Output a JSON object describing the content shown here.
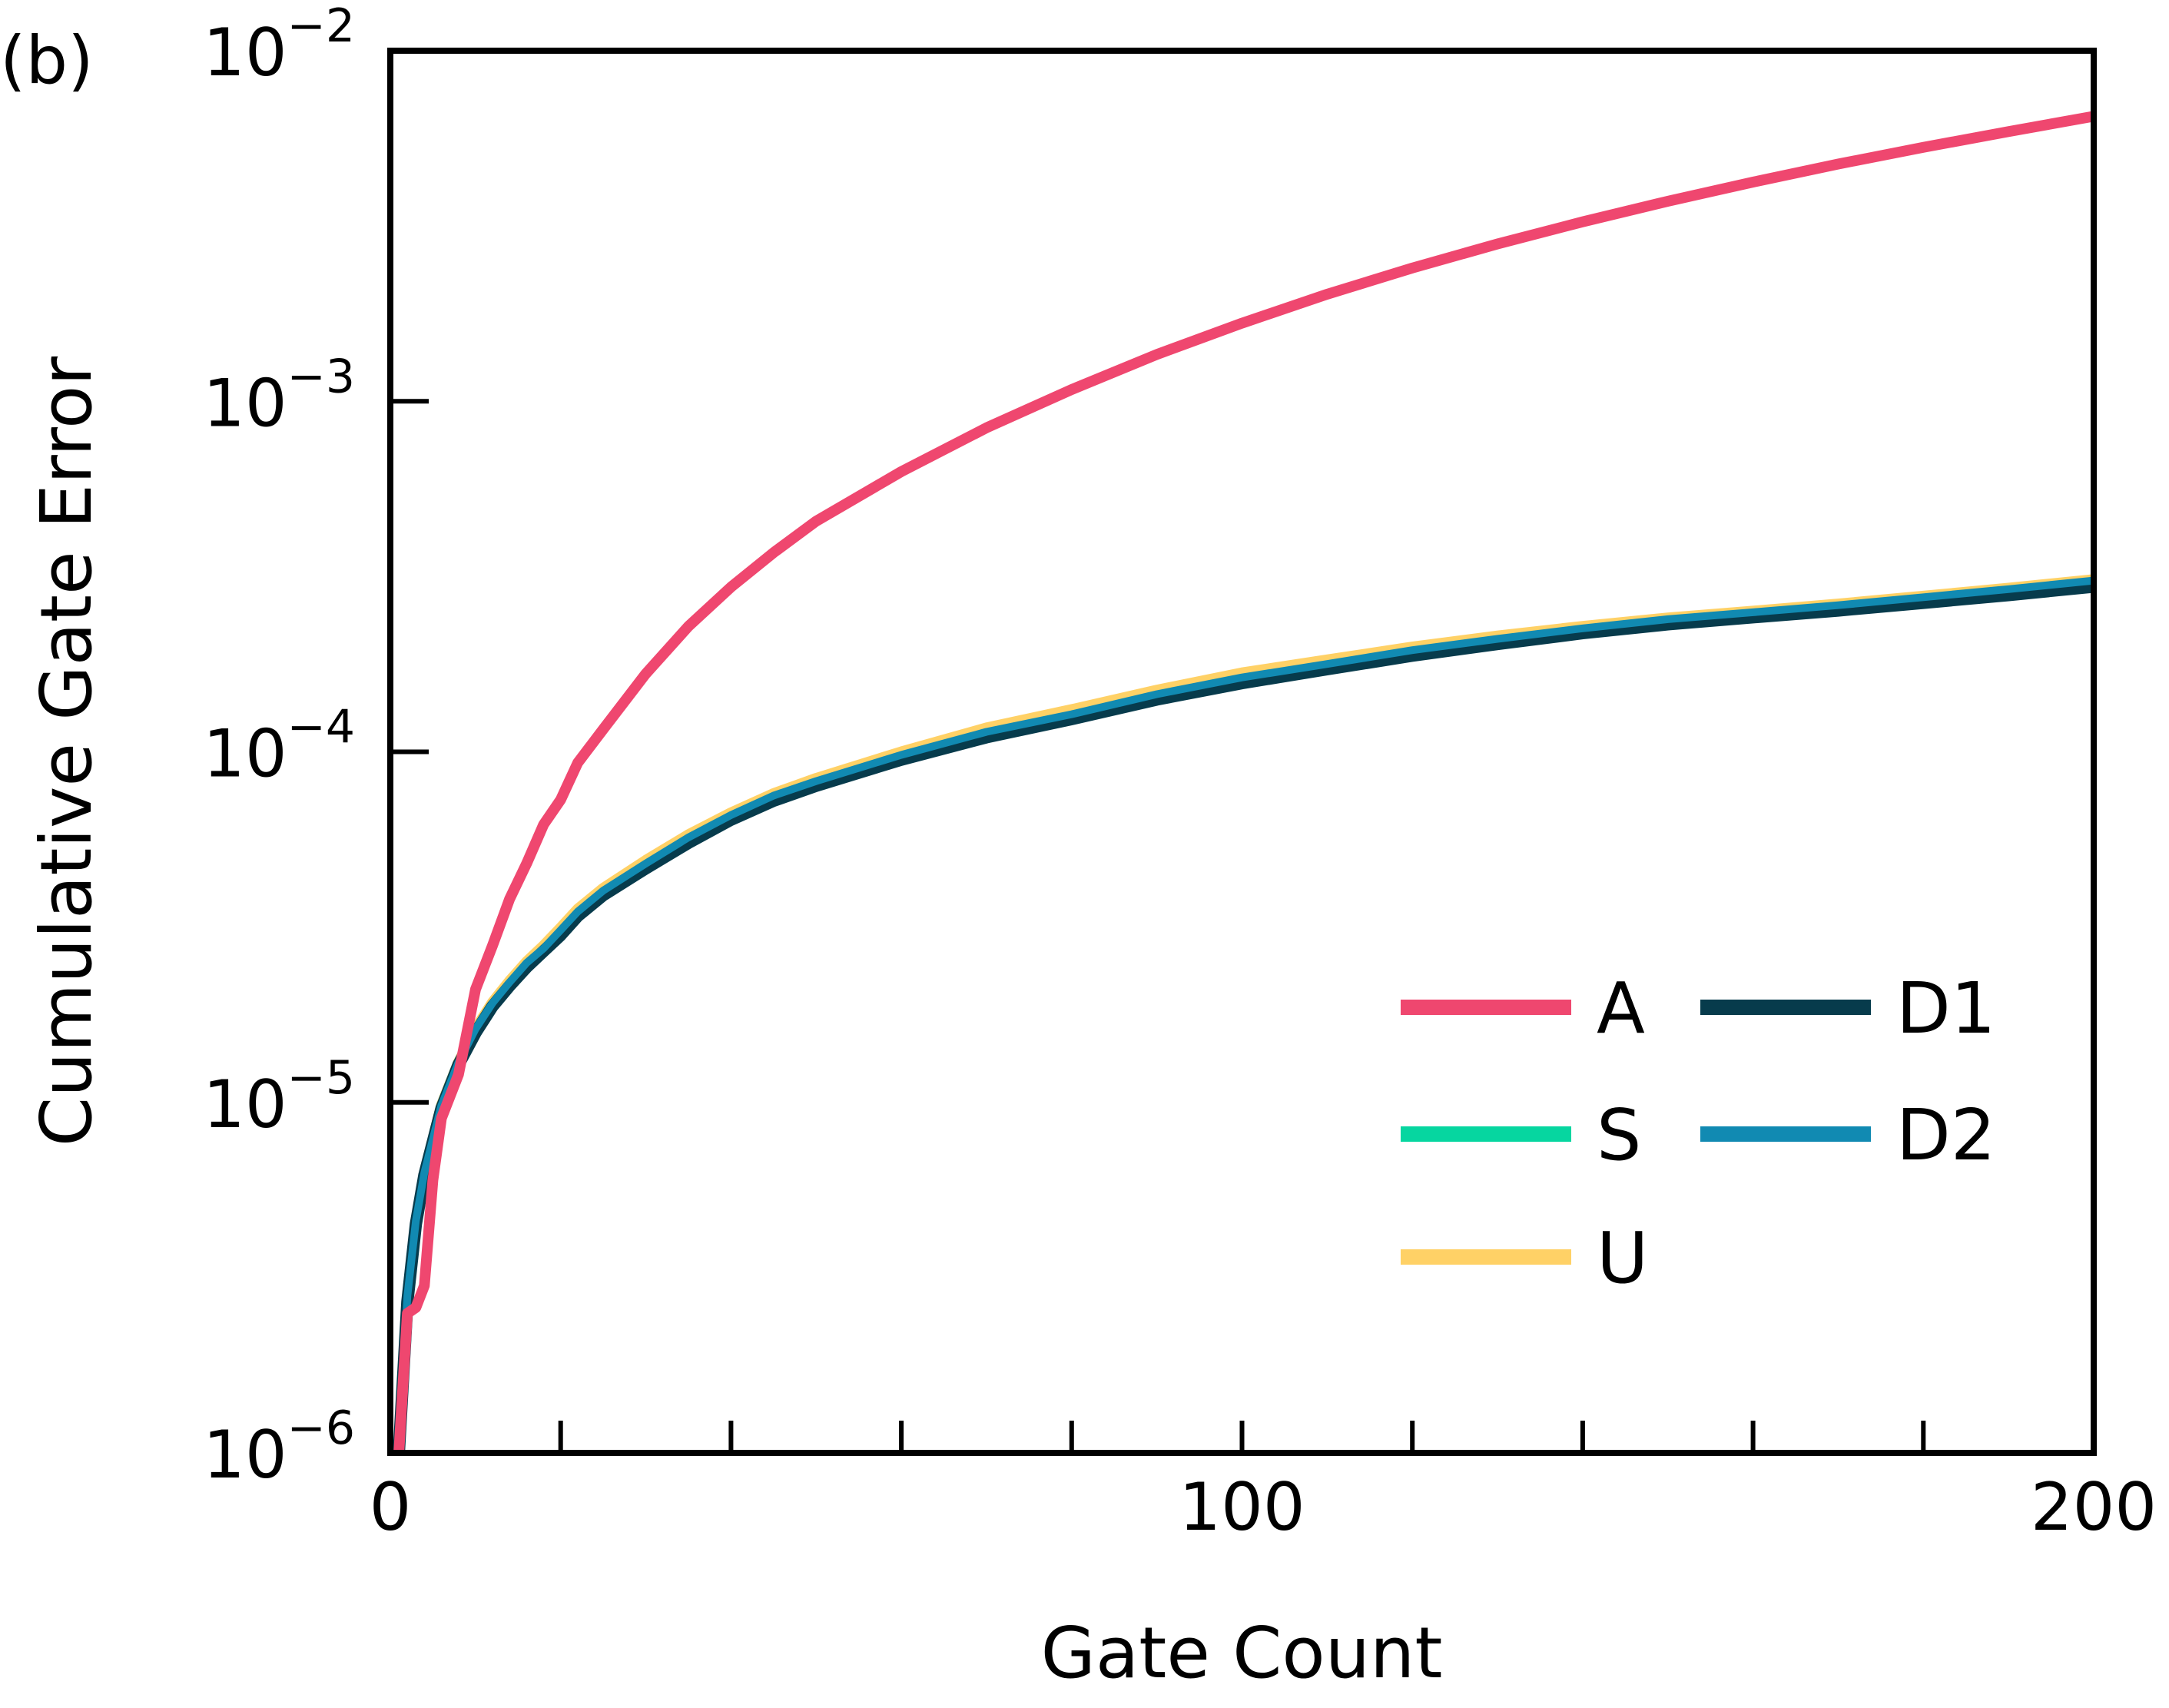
{
  "panel_label": "(b)",
  "colors": {
    "A": "#ef476f",
    "S": "#06d6a0",
    "U": "#ffd166",
    "D1": "#073b4c",
    "D2": "#118ab2",
    "axes": "#000000"
  },
  "chart_data": {
    "type": "line",
    "title": "",
    "xlabel": "Gate Count",
    "ylabel": "Cumulative Gate Error",
    "xlim": [
      0,
      200
    ],
    "ylim": [
      1e-06,
      0.01
    ],
    "yscale": "log",
    "grid": false,
    "legend_position": "lower-right",
    "legend_columns": 2,
    "x_ticks": [
      0,
      100,
      200
    ],
    "x_minor_ticks": [
      20,
      40,
      60,
      80,
      120,
      140,
      160,
      180
    ],
    "y_ticks": [
      {
        "value": 1e-06,
        "base": "10",
        "exponent": "−6"
      },
      {
        "value": 1e-05,
        "base": "10",
        "exponent": "−5"
      },
      {
        "value": 0.0001,
        "base": "10",
        "exponent": "−4"
      },
      {
        "value": 0.001,
        "base": "10",
        "exponent": "−3"
      },
      {
        "value": 0.01,
        "base": "10",
        "exponent": "−2"
      }
    ],
    "series": [
      {
        "name": "A",
        "color_key": "A",
        "x": [
          1,
          2,
          3,
          4,
          5,
          6,
          8,
          10,
          12,
          14,
          16,
          18,
          20,
          22,
          25,
          30,
          35,
          40,
          45,
          50,
          60,
          70,
          80,
          90,
          100,
          110,
          120,
          130,
          140,
          150,
          160,
          170,
          180,
          190,
          200
        ],
        "y": [
          1e-06,
          2.5e-06,
          2.6e-06,
          3e-06,
          6e-06,
          9e-06,
          1.2e-05,
          2.1e-05,
          2.8e-05,
          3.8e-05,
          4.8e-05,
          6.2e-05,
          7.3e-05,
          9.3e-05,
          0.000116,
          0.000167,
          0.000228,
          0.000295,
          0.00037,
          0.000455,
          0.00063,
          0.00084,
          0.00108,
          0.00136,
          0.00167,
          0.00202,
          0.0024,
          0.00281,
          0.00325,
          0.00372,
          0.00422,
          0.00475,
          0.0053,
          0.00588,
          0.0065
        ]
      },
      {
        "name": "S",
        "color_key": "S",
        "x": [
          1,
          2,
          3,
          4,
          6,
          8,
          10,
          12,
          14,
          16,
          18,
          20,
          22,
          25,
          30,
          35,
          40,
          45,
          50,
          60,
          70,
          80,
          90,
          100,
          110,
          120,
          130,
          140,
          150,
          160,
          170,
          180,
          190,
          200
        ],
        "y": [
          1e-06,
          2.8e-06,
          4.6e-06,
          6.3e-06,
          9.8e-06,
          1.3e-05,
          1.62e-05,
          1.92e-05,
          2.2e-05,
          2.5e-05,
          2.75e-05,
          3.1e-05,
          3.5e-05,
          4.02e-05,
          4.8e-05,
          5.7e-05,
          6.6e-05,
          7.5e-05,
          8.25e-05,
          9.8e-05,
          0.000114,
          0.000128,
          0.000146,
          0.000163,
          0.000178,
          0.000195,
          0.00021,
          0.000225,
          0.000239,
          0.00025,
          0.000262,
          0.000276,
          0.000291,
          0.000308
        ]
      },
      {
        "name": "U",
        "color_key": "U",
        "x": [
          1,
          2,
          3,
          4,
          6,
          8,
          10,
          12,
          14,
          16,
          18,
          20,
          22,
          25,
          30,
          35,
          40,
          45,
          50,
          60,
          70,
          80,
          90,
          100,
          110,
          120,
          130,
          140,
          150,
          160,
          170,
          180,
          190,
          200
        ],
        "y": [
          1e-06,
          2.8e-06,
          4.6e-06,
          6.3e-06,
          9.8e-06,
          1.3e-05,
          1.62e-05,
          1.93e-05,
          2.22e-05,
          2.52e-05,
          2.8e-05,
          3.15e-05,
          3.56e-05,
          4.08e-05,
          4.9e-05,
          5.8e-05,
          6.7e-05,
          7.6e-05,
          8.4e-05,
          0.0001,
          0.000117,
          0.000132,
          0.00015,
          0.000168,
          0.000183,
          0.000199,
          0.000214,
          0.000228,
          0.000241,
          0.000252,
          0.000264,
          0.000278,
          0.000293,
          0.00031
        ]
      },
      {
        "name": "D1",
        "color_key": "D1",
        "x": [
          1,
          2,
          3,
          4,
          6,
          8,
          10,
          12,
          14,
          16,
          18,
          20,
          22,
          25,
          30,
          35,
          40,
          45,
          50,
          60,
          70,
          80,
          90,
          100,
          110,
          120,
          130,
          140,
          150,
          160,
          170,
          180,
          190,
          200
        ],
        "y": [
          1e-06,
          2.7e-06,
          4.5e-06,
          6.2e-06,
          9.6e-06,
          1.28e-05,
          1.58e-05,
          1.88e-05,
          2.15e-05,
          2.43e-05,
          2.7e-05,
          3e-05,
          3.4e-05,
          3.9e-05,
          4.65e-05,
          5.5e-05,
          6.4e-05,
          7.25e-05,
          8e-05,
          9.5e-05,
          0.00011,
          0.000124,
          0.000141,
          0.000157,
          0.000172,
          0.000188,
          0.000203,
          0.000218,
          0.000231,
          0.000242,
          0.000253,
          0.000266,
          0.00028,
          0.000296
        ]
      },
      {
        "name": "D2",
        "color_key": "D2",
        "x": [
          1,
          2,
          3,
          4,
          6,
          8,
          10,
          12,
          14,
          16,
          18,
          20,
          22,
          25,
          30,
          35,
          40,
          45,
          50,
          60,
          70,
          80,
          90,
          100,
          110,
          120,
          130,
          140,
          150,
          160,
          170,
          180,
          190,
          200
        ],
        "y": [
          1e-06,
          2.8e-06,
          4.6e-06,
          6.3e-06,
          9.8e-06,
          1.3e-05,
          1.62e-05,
          1.92e-05,
          2.2e-05,
          2.5e-05,
          2.75e-05,
          3.1e-05,
          3.5e-05,
          4.02e-05,
          4.8e-05,
          5.7e-05,
          6.6e-05,
          7.5e-05,
          8.25e-05,
          9.8e-05,
          0.000114,
          0.000128,
          0.000146,
          0.000163,
          0.000178,
          0.000195,
          0.00021,
          0.000225,
          0.000239,
          0.00025,
          0.000262,
          0.000276,
          0.000291,
          0.000308
        ]
      }
    ],
    "legend": [
      {
        "name": "A",
        "color_key": "A"
      },
      {
        "name": "S",
        "color_key": "S"
      },
      {
        "name": "U",
        "color_key": "U"
      },
      {
        "name": "D1",
        "color_key": "D1"
      },
      {
        "name": "D2",
        "color_key": "D2"
      }
    ]
  }
}
